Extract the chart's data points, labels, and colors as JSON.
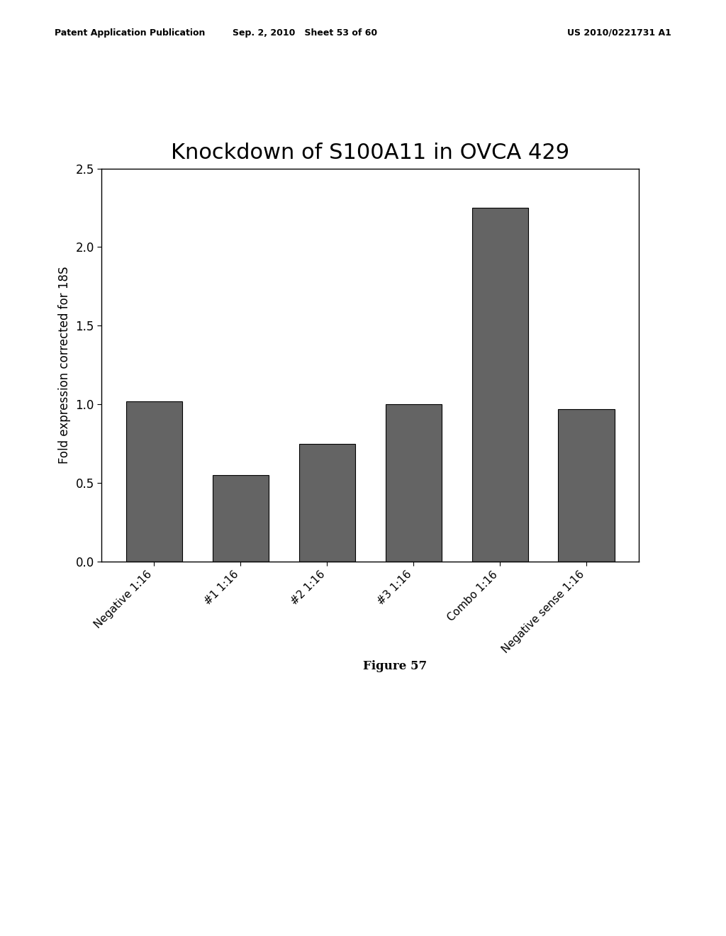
{
  "title": "Knockdown of S100A11 in OVCA 429",
  "ylabel": "Fold expression corrected for 18S",
  "categories": [
    "Negative 1:16",
    "#1 1:16",
    "#2 1:16",
    "#3 1:16",
    "Combo 1:16",
    "Negative sense 1:16"
  ],
  "values": [
    1.02,
    0.55,
    0.75,
    1.0,
    2.25,
    0.97
  ],
  "ylim": [
    0.0,
    2.5
  ],
  "yticks": [
    0.0,
    0.5,
    1.0,
    1.5,
    2.0,
    2.5
  ],
  "bar_color": "#646464",
  "bar_edgecolor": "#000000",
  "background_color": "#ffffff",
  "title_fontsize": 22,
  "ylabel_fontsize": 12,
  "tick_fontsize": 12,
  "xtick_fontsize": 11,
  "figure_caption": "Figure 57",
  "header_left": "Patent Application Publication",
  "header_center": "Sep. 2, 2010   Sheet 53 of 60",
  "header_right": "US 2010/0221731 A1",
  "header_fontsize": 9,
  "caption_fontsize": 12
}
